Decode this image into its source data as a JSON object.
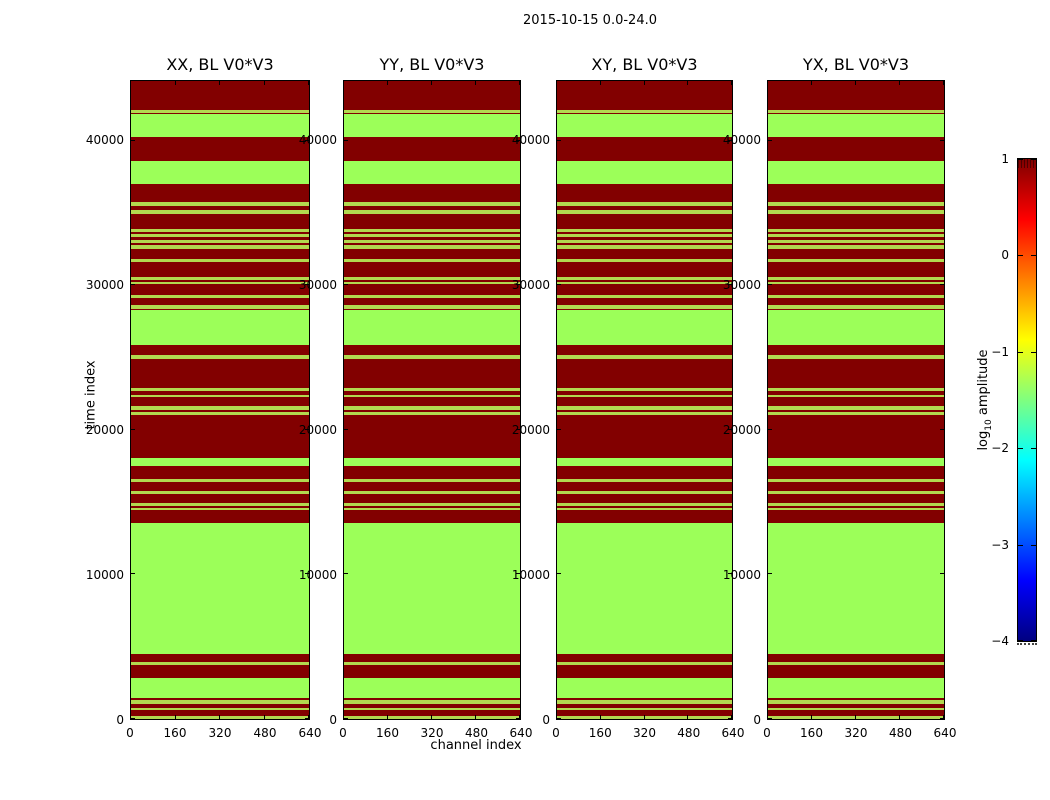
{
  "figure": {
    "title": "2015-10-15 0.0-24.0",
    "background_color": "#ffffff"
  },
  "chart_data": {
    "type": "heatmap",
    "title": "2015-10-15 0.0-24.0",
    "xlabel": "channel index",
    "ylabel": "time index",
    "xlim": [
      0,
      640
    ],
    "ylim": [
      0,
      44140
    ],
    "x_ticks": [
      0,
      160,
      320,
      480,
      640
    ],
    "y_ticks": [
      0,
      10000,
      20000,
      30000,
      40000
    ],
    "grid": false,
    "panels": [
      {
        "pol": "xx",
        "title": "XX, BL V0*V3"
      },
      {
        "pol": "yy",
        "title": "YY, BL V0*V3"
      },
      {
        "pol": "xy",
        "title": "XY, BL V0*V3"
      },
      {
        "pol": "yx",
        "title": "YX, BL V0*V3"
      }
    ],
    "bands_shared_across_panels": true,
    "colors": {
      "high_amplitude": "#820000",
      "low_amplitude_band": "#9cff59",
      "low_amplitude_thin": "#b2d94f"
    },
    "green_bands": [
      {
        "from": 30,
        "to": 210,
        "thin": true
      },
      {
        "from": 590,
        "to": 790,
        "thin": true
      },
      {
        "from": 1070,
        "to": 1280,
        "thin": true
      },
      {
        "from": 1450,
        "to": 2830,
        "thin": false
      },
      {
        "from": 3700,
        "to": 3900,
        "thin": true
      },
      {
        "from": 4490,
        "to": 13540,
        "thin": false
      },
      {
        "from": 14400,
        "to": 14580,
        "thin": true
      },
      {
        "from": 14710,
        "to": 14920,
        "thin": true
      },
      {
        "from": 15510,
        "to": 15750,
        "thin": true
      },
      {
        "from": 16340,
        "to": 16540,
        "thin": true
      },
      {
        "from": 17480,
        "to": 18030,
        "thin": false
      },
      {
        "from": 20960,
        "to": 21210,
        "thin": true
      },
      {
        "from": 21340,
        "to": 21620,
        "thin": true
      },
      {
        "from": 22210,
        "to": 22380,
        "thin": true
      },
      {
        "from": 22620,
        "to": 22860,
        "thin": true
      },
      {
        "from": 24830,
        "to": 25080,
        "thin": true
      },
      {
        "from": 25770,
        "to": 28220,
        "thin": false
      },
      {
        "from": 28290,
        "to": 28530,
        "thin": true
      },
      {
        "from": 29010,
        "to": 29220,
        "thin": true
      },
      {
        "from": 29980,
        "to": 30150,
        "thin": true
      },
      {
        "from": 30260,
        "to": 30500,
        "thin": true
      },
      {
        "from": 31530,
        "to": 31740,
        "thin": true
      },
      {
        "from": 32430,
        "to": 32670,
        "thin": true
      },
      {
        "from": 32810,
        "to": 33020,
        "thin": true
      },
      {
        "from": 33230,
        "to": 33430,
        "thin": true
      },
      {
        "from": 33600,
        "to": 33810,
        "thin": true
      },
      {
        "from": 34810,
        "to": 35090,
        "thin": true
      },
      {
        "from": 35400,
        "to": 35650,
        "thin": true
      },
      {
        "from": 36890,
        "to": 38480,
        "thin": false
      },
      {
        "from": 40150,
        "to": 41720,
        "thin": false
      },
      {
        "from": 41800,
        "to": 42000,
        "thin": true
      }
    ],
    "colorbar": {
      "label_prefix": "log",
      "label_subscript": "10",
      "label_suffix": " amplitude",
      "vmin": -4,
      "vmax": 1,
      "colormap": "jet",
      "tick_values": [
        1,
        0,
        -1,
        -2,
        -3,
        -4
      ],
      "tick_labels": [
        "1",
        "0",
        "−1",
        "−2",
        "−3",
        "−4"
      ],
      "legend_position": "right"
    }
  }
}
